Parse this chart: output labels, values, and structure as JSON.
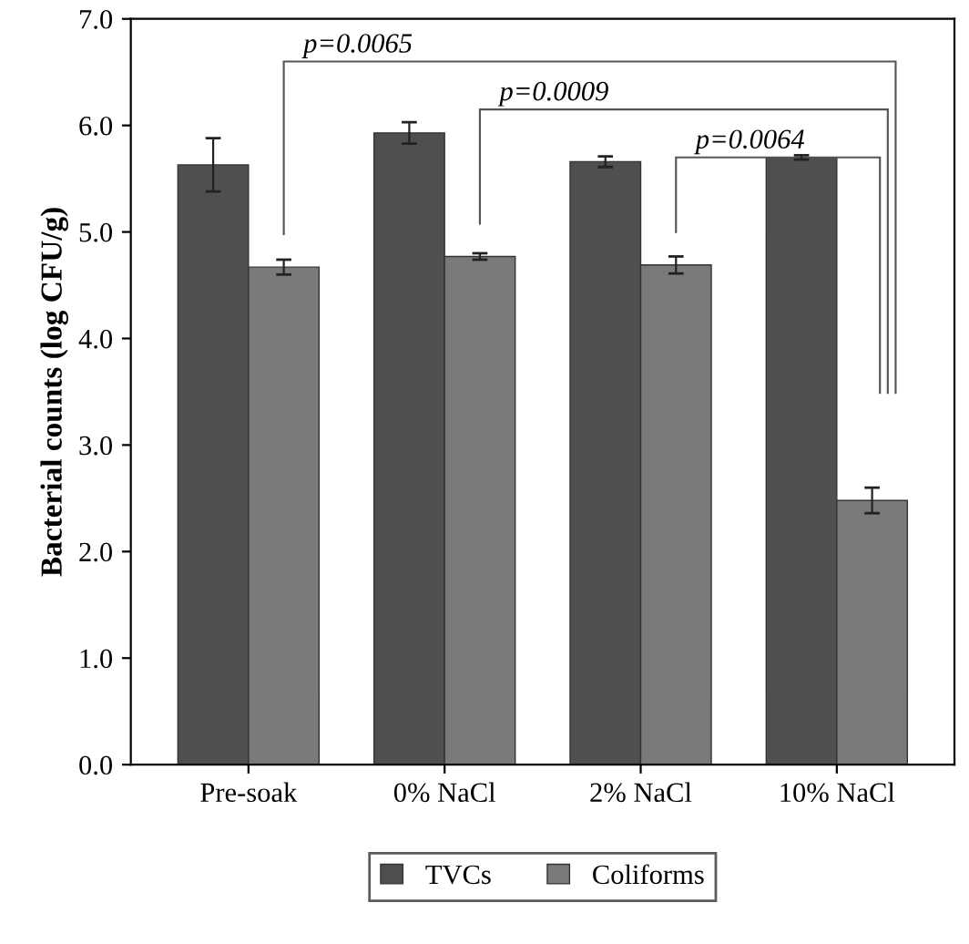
{
  "chart_data": {
    "type": "bar",
    "ylabel": "Bacterial counts (log CFU/g)",
    "categories": [
      "Pre-soak",
      "0% NaCl",
      "2% NaCl",
      "10% NaCl"
    ],
    "series": [
      {
        "name": "TVCs",
        "color": "#4f4f4f",
        "values": [
          5.63,
          5.93,
          5.66,
          5.7
        ],
        "errors": [
          0.25,
          0.1,
          0.05,
          0.02
        ]
      },
      {
        "name": "Coliforms",
        "color": "#7a7a7a",
        "values": [
          4.67,
          4.77,
          4.69,
          2.48
        ],
        "errors": [
          0.07,
          0.03,
          0.08,
          0.12
        ]
      }
    ],
    "ylim": [
      0,
      7
    ],
    "yticks": [
      {
        "value": 0,
        "label": "0.0"
      },
      {
        "value": 1,
        "label": "1.0"
      },
      {
        "value": 2,
        "label": "2.0"
      },
      {
        "value": 3,
        "label": "3.0"
      },
      {
        "value": 4,
        "label": "4.0"
      },
      {
        "value": 5,
        "label": "5.0"
      },
      {
        "value": 6,
        "label": "6.0"
      },
      {
        "value": 7,
        "label": "7.0"
      }
    ],
    "annotations": [
      "p=0.0065",
      "p=0.0009",
      "p=0.0064"
    ],
    "grid": false,
    "legend": "bottom"
  }
}
